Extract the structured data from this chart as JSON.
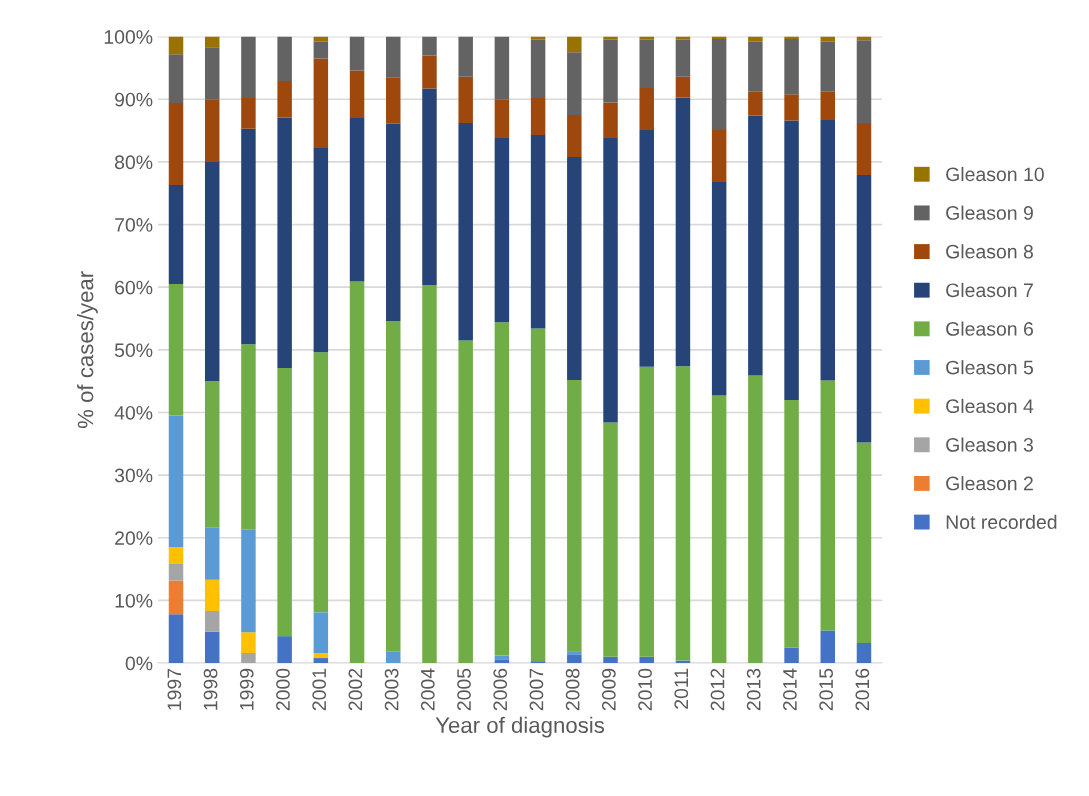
{
  "chart_data": {
    "type": "bar",
    "stacked": true,
    "xlabel": "Year of diagnosis",
    "ylabel": "% of cases/year",
    "categories": [
      "1997",
      "1998",
      "1999",
      "2000",
      "2001",
      "2002",
      "2003",
      "2004",
      "2005",
      "2006",
      "2007",
      "2008",
      "2009",
      "2010",
      "2011",
      "2012",
      "2013",
      "2014",
      "2015",
      "2016"
    ],
    "ylim": [
      0,
      100
    ],
    "yticks": [
      {
        "value": 0,
        "label": "0%"
      },
      {
        "value": 10,
        "label": "10%"
      },
      {
        "value": 20,
        "label": "20%"
      },
      {
        "value": 30,
        "label": "30%"
      },
      {
        "value": 40,
        "label": "40%"
      },
      {
        "value": 50,
        "label": "50%"
      },
      {
        "value": 60,
        "label": "60%"
      },
      {
        "value": 70,
        "label": "70%"
      },
      {
        "value": 80,
        "label": "80%"
      },
      {
        "value": 90,
        "label": "90%"
      },
      {
        "value": 100,
        "label": "100%"
      }
    ],
    "grid": "y",
    "legend": "right",
    "series": [
      {
        "name": "Not recorded",
        "color": "#4472c4",
        "values": [
          7.8,
          5.0,
          0,
          4.3,
          0.8,
          0,
          0,
          0,
          0,
          0.6,
          0.3,
          1.3,
          1.0,
          1.0,
          0.4,
          0,
          0,
          2.5,
          5.2,
          3.2
        ]
      },
      {
        "name": "Gleason 2",
        "color": "#ed7d31",
        "values": [
          5.4,
          0,
          0,
          0,
          0,
          0,
          0,
          0,
          0,
          0,
          0,
          0,
          0,
          0,
          0,
          0,
          0,
          0,
          0,
          0
        ]
      },
      {
        "name": "Gleason 3",
        "color": "#a5a5a5",
        "values": [
          2.6,
          3.3,
          1.6,
          0,
          0,
          0,
          0,
          0,
          0,
          0,
          0,
          0,
          0,
          0,
          0,
          0,
          0,
          0,
          0,
          0
        ]
      },
      {
        "name": "Gleason 4",
        "color": "#ffc000",
        "values": [
          2.7,
          5.0,
          3.3,
          0,
          0.8,
          0,
          0,
          0,
          0,
          0,
          0,
          0,
          0,
          0,
          0,
          0,
          0,
          0,
          0,
          0
        ]
      },
      {
        "name": "Gleason 5",
        "color": "#5b9bd5",
        "values": [
          21.0,
          8.4,
          16.4,
          0,
          6.5,
          0,
          1.8,
          0,
          0,
          0.6,
          0,
          0.6,
          0,
          0,
          0,
          0,
          0,
          0,
          0,
          0
        ]
      },
      {
        "name": "Gleason 6",
        "color": "#70ad47",
        "values": [
          21.0,
          23.3,
          29.6,
          42.8,
          41.5,
          60.9,
          52.8,
          60.3,
          51.5,
          53.2,
          53.1,
          43.3,
          37.4,
          46.3,
          47.0,
          42.7,
          45.9,
          39.5,
          39.9,
          32.0
        ]
      },
      {
        "name": "Gleason 7",
        "color": "#264478",
        "values": [
          15.8,
          35.0,
          34.4,
          40.0,
          32.6,
          26.1,
          31.5,
          31.4,
          34.7,
          29.4,
          30.9,
          35.6,
          45.4,
          37.8,
          42.9,
          34.1,
          41.5,
          44.6,
          41.6,
          42.7
        ]
      },
      {
        "name": "Gleason 8",
        "color": "#9e480e",
        "values": [
          13.1,
          10.0,
          4.9,
          5.8,
          14.3,
          7.6,
          7.4,
          5.3,
          7.4,
          6.2,
          5.9,
          6.7,
          5.7,
          6.7,
          3.3,
          8.3,
          3.8,
          4.2,
          4.5,
          8.3
        ]
      },
      {
        "name": "Gleason 9",
        "color": "#636363",
        "values": [
          7.8,
          8.3,
          9.8,
          7.1,
          2.7,
          5.4,
          6.5,
          3.0,
          6.4,
          10.0,
          9.3,
          10.0,
          10.0,
          7.7,
          5.9,
          14.5,
          8.0,
          8.8,
          8.0,
          13.2
        ]
      },
      {
        "name": "Gleason 10",
        "color": "#997300",
        "values": [
          2.8,
          1.7,
          0,
          0,
          0.8,
          0,
          0,
          0,
          0,
          0,
          0.5,
          2.5,
          0.5,
          0.5,
          0.5,
          0.4,
          0.8,
          0.4,
          0.8,
          0.6
        ]
      }
    ]
  }
}
